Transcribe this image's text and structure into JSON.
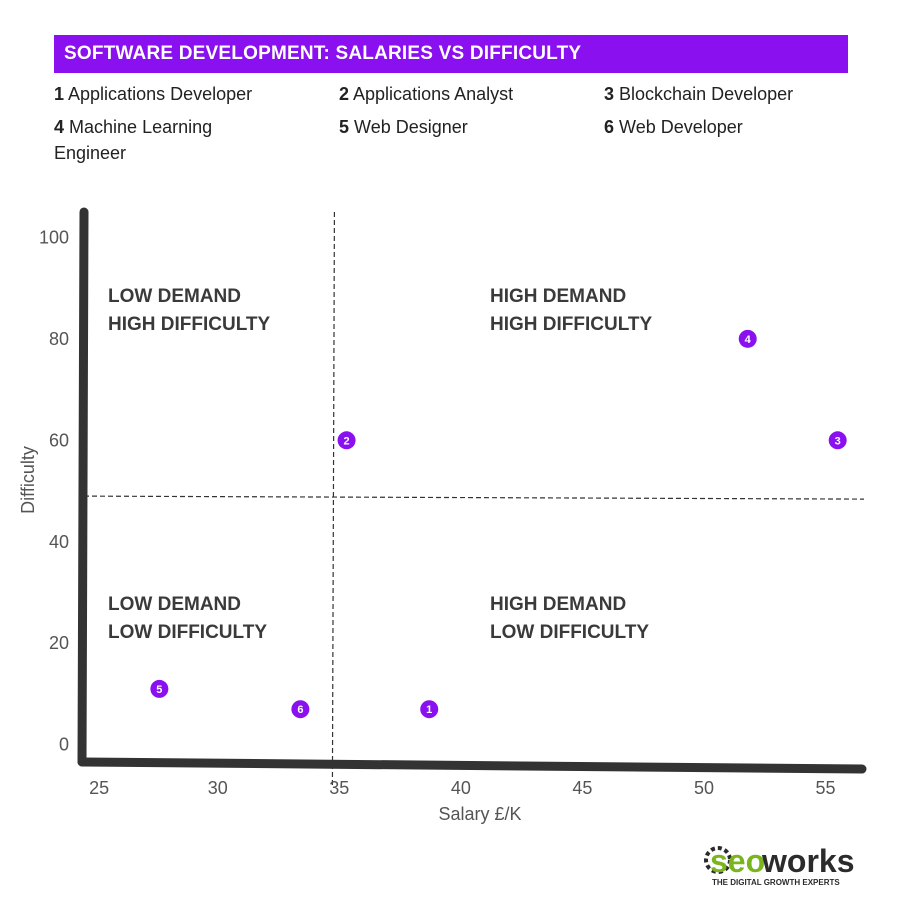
{
  "title": "SOFTWARE DEVELOPMENT: SALARIES VS DIFFICULTY",
  "legend": [
    {
      "num": "1",
      "name": "Applications Developer"
    },
    {
      "num": "2",
      "name": "Applications Analyst"
    },
    {
      "num": "3",
      "name": "Blockchain Developer"
    },
    {
      "num": "4",
      "name": "Machine Learning Engineer"
    },
    {
      "num": "5",
      "name": "Web Designer"
    },
    {
      "num": "6",
      "name": "Web Developer"
    }
  ],
  "brand": {
    "name_seo": "seo",
    "name_works": "works",
    "tagline": "THE DIGITAL GROWTH EXPERTS"
  },
  "colors": {
    "accent": "#8a10f0",
    "axis": "#333333",
    "text": "#3a3a3a"
  },
  "chart_data": {
    "type": "scatter",
    "xlabel": "Salary £/K",
    "ylabel": "Difficulty",
    "xlim": [
      24.5,
      56.5
    ],
    "ylim": [
      -4,
      105
    ],
    "xticks": [
      25,
      30,
      35,
      40,
      45,
      50,
      55
    ],
    "yticks": [
      0,
      20,
      40,
      60,
      80,
      100
    ],
    "divider_x": 34.8,
    "divider_y": 49,
    "points": [
      {
        "label": "1",
        "x": 38.7,
        "y": 7
      },
      {
        "label": "2",
        "x": 35.3,
        "y": 60
      },
      {
        "label": "3",
        "x": 55.5,
        "y": 60
      },
      {
        "label": "4",
        "x": 51.8,
        "y": 80
      },
      {
        "label": "5",
        "x": 27.6,
        "y": 11
      },
      {
        "label": "6",
        "x": 33.4,
        "y": 7
      }
    ],
    "quadrants": [
      {
        "pos": "top-left",
        "lines": [
          "LOW DEMAND",
          "HIGH DIFFICULTY"
        ]
      },
      {
        "pos": "top-right",
        "lines": [
          "HIGH DEMAND",
          "HIGH DIFFICULTY"
        ]
      },
      {
        "pos": "bottom-left",
        "lines": [
          "LOW DEMAND",
          "LOW DIFFICULTY"
        ]
      },
      {
        "pos": "bottom-right",
        "lines": [
          "HIGH DEMAND",
          "LOW DIFFICULTY"
        ]
      }
    ]
  }
}
